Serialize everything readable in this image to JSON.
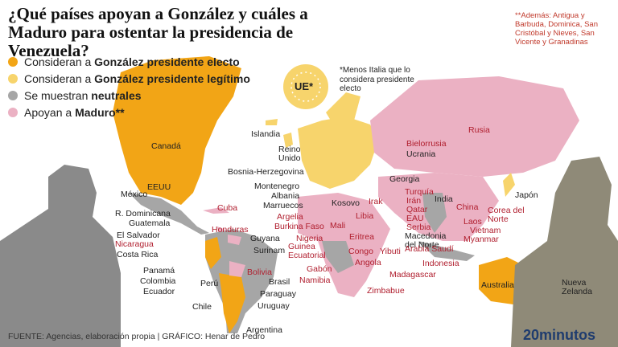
{
  "header": {
    "title": "¿Qué países apoyan a González y cuáles a Maduro para ostentar la presidencia de Venezuela?",
    "note": "**Además: Antigua y Barbuda, Dominica, San Cristóbal y Nieves, San Vicente y Granadinas"
  },
  "legend": [
    {
      "text": "Consideran a ",
      "bold": "González presidente electo",
      "color": "#f2a516"
    },
    {
      "text": "Consideran a ",
      "bold": "González presidente legítimo",
      "color": "#f7d46c"
    },
    {
      "text": "Se muestran ",
      "bold": "neutrales",
      "color": "#a6a6a6"
    },
    {
      "text": "Apoyan a ",
      "bold": "Maduro**",
      "color": "#ebb1c3"
    }
  ],
  "eu": {
    "label": "UE*",
    "note": "*Menos Italia que lo considera presidente electo"
  },
  "labels": [
    {
      "text": "Canadá",
      "color": "#222"
    },
    {
      "text": "EEUU",
      "color": "#222"
    },
    {
      "text": "México",
      "color": "#222"
    },
    {
      "text": "Islandia",
      "color": "#222"
    },
    {
      "text": "Reino Unido",
      "color": "#222"
    },
    {
      "text": "Bosnia-Herzegovina",
      "color": "#222"
    },
    {
      "text": "Montenegro",
      "color": "#222"
    },
    {
      "text": "Albania",
      "color": "#222"
    },
    {
      "text": "Marruecos",
      "color": "#222"
    },
    {
      "text": "Georgia",
      "color": "#222"
    },
    {
      "text": "Bielorrusia",
      "color": "#b01e2e"
    },
    {
      "text": "Ucrania",
      "color": "#222"
    },
    {
      "text": "Rusia",
      "color": "#b01e2e"
    },
    {
      "text": "Turquía",
      "color": "#b01e2e"
    },
    {
      "text": "Irán",
      "color": "#b01e2e"
    },
    {
      "text": "Qatar",
      "color": "#b01e2e"
    },
    {
      "text": "EAU",
      "color": "#b01e2e"
    },
    {
      "text": "Serbia",
      "color": "#b01e2e"
    },
    {
      "text": "Macedonia del Norte",
      "color": "#222"
    },
    {
      "text": "Arabia Saudí",
      "color": "#b01e2e"
    },
    {
      "text": "India",
      "color": "#222"
    },
    {
      "text": "China",
      "color": "#b01e2e"
    },
    {
      "text": "Japón",
      "color": "#222"
    },
    {
      "text": "Laos",
      "color": "#b01e2e"
    },
    {
      "text": "Corea del Norte",
      "color": "#b01e2e"
    },
    {
      "text": "Vietnam",
      "color": "#b01e2e"
    },
    {
      "text": "Myanmar",
      "color": "#b01e2e"
    },
    {
      "text": "Indonesia",
      "color": "#b01e2e"
    },
    {
      "text": "Irak",
      "color": "#b01e2e"
    },
    {
      "text": "Libia",
      "color": "#b01e2e"
    },
    {
      "text": "Kosovo",
      "color": "#222"
    },
    {
      "text": "Argelia",
      "color": "#b01e2e"
    },
    {
      "text": "Burkina Faso",
      "color": "#b01e2e"
    },
    {
      "text": "Mali",
      "color": "#b01e2e"
    },
    {
      "text": "Eritrea",
      "color": "#b01e2e"
    },
    {
      "text": "Nigeria",
      "color": "#b01e2e"
    },
    {
      "text": "Guinea Ecuatorial",
      "color": "#b01e2e"
    },
    {
      "text": "Congo",
      "color": "#b01e2e"
    },
    {
      "text": "Yibuti",
      "color": "#b01e2e"
    },
    {
      "text": "Angola",
      "color": "#b01e2e"
    },
    {
      "text": "Gabón",
      "color": "#b01e2e"
    },
    {
      "text": "Madagascar",
      "color": "#b01e2e"
    },
    {
      "text": "Namibia",
      "color": "#b01e2e"
    },
    {
      "text": "Zimbabue",
      "color": "#b01e2e"
    },
    {
      "text": "Cuba",
      "color": "#b01e2e"
    },
    {
      "text": "R. Dominicana",
      "color": "#222"
    },
    {
      "text": "Guatemala",
      "color": "#222"
    },
    {
      "text": "Honduras",
      "color": "#b01e2e"
    },
    {
      "text": "El Salvador",
      "color": "#222"
    },
    {
      "text": "Nicaragua",
      "color": "#b01e2e"
    },
    {
      "text": "Costa Rica",
      "color": "#222"
    },
    {
      "text": "Guyana",
      "color": "#222"
    },
    {
      "text": "Surinam",
      "color": "#222"
    },
    {
      "text": "Panamá",
      "color": "#222"
    },
    {
      "text": "Colombia",
      "color": "#222"
    },
    {
      "text": "Ecuador",
      "color": "#222"
    },
    {
      "text": "Perú",
      "color": "#222"
    },
    {
      "text": "Bolivia",
      "color": "#b01e2e"
    },
    {
      "text": "Brasil",
      "color": "#222"
    },
    {
      "text": "Paraguay",
      "color": "#222"
    },
    {
      "text": "Uruguay",
      "color": "#222"
    },
    {
      "text": "Chile",
      "color": "#222"
    },
    {
      "text": "Argentina",
      "color": "#222"
    },
    {
      "text": "Australia",
      "color": "#222"
    },
    {
      "text": "Nueva Zelanda",
      "color": "#222"
    }
  ],
  "footer": {
    "source": "FUENTE: Agencias, elaboración propia  |  GRÁFICO: Henar de Pedro",
    "brand": "20minutos"
  }
}
